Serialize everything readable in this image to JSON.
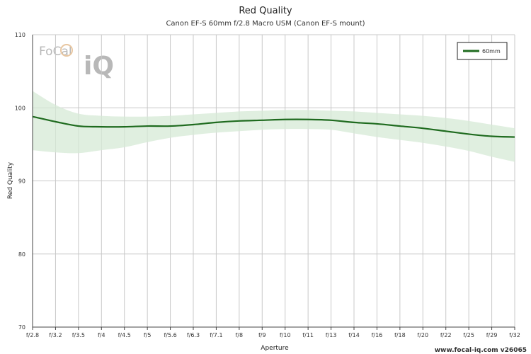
{
  "chart_data": {
    "type": "line",
    "title": "Red Quality",
    "subtitle": "Canon EF-S 60mm f/2.8 Macro USM (Canon EF-S mount)",
    "xlabel": "Aperture",
    "ylabel": "Red Quality",
    "ylim": [
      70,
      110
    ],
    "yticks": [
      70,
      80,
      90,
      100,
      110
    ],
    "categories": [
      "f/2.8",
      "f/3.2",
      "f/3.5",
      "f/4",
      "f/4.5",
      "f/5",
      "f/5.6",
      "f/6.3",
      "f/7.1",
      "f/8",
      "f/9",
      "f/10",
      "f/11",
      "f/13",
      "f/14",
      "f/16",
      "f/18",
      "f/20",
      "f/22",
      "f/25",
      "f/29",
      "f/32"
    ],
    "grid": true,
    "legend_position": "top-right",
    "series": [
      {
        "name": "60mm",
        "color": "#1f6b1f",
        "band_color": "#d6ead6",
        "values": [
          98.8,
          98.1,
          97.5,
          97.4,
          97.4,
          97.5,
          97.5,
          97.7,
          98.0,
          98.2,
          98.3,
          98.4,
          98.4,
          98.3,
          98.0,
          97.8,
          97.5,
          97.2,
          96.8,
          96.4,
          96.1,
          96.0
        ],
        "upper": [
          102.3,
          100.4,
          99.2,
          98.9,
          98.8,
          98.8,
          98.9,
          99.1,
          99.3,
          99.5,
          99.6,
          99.7,
          99.7,
          99.6,
          99.5,
          99.3,
          99.1,
          98.9,
          98.6,
          98.2,
          97.7,
          97.2
        ],
        "lower": [
          94.2,
          93.9,
          93.8,
          94.2,
          94.6,
          95.3,
          95.9,
          96.3,
          96.6,
          96.8,
          97.0,
          97.1,
          97.1,
          97.0,
          96.5,
          96.0,
          95.6,
          95.2,
          94.7,
          94.1,
          93.3,
          92.6
        ]
      }
    ]
  },
  "logo": {
    "word1": "FoCal",
    "word2": "iQ"
  },
  "footer": "www.focal-iq.com  v26065"
}
